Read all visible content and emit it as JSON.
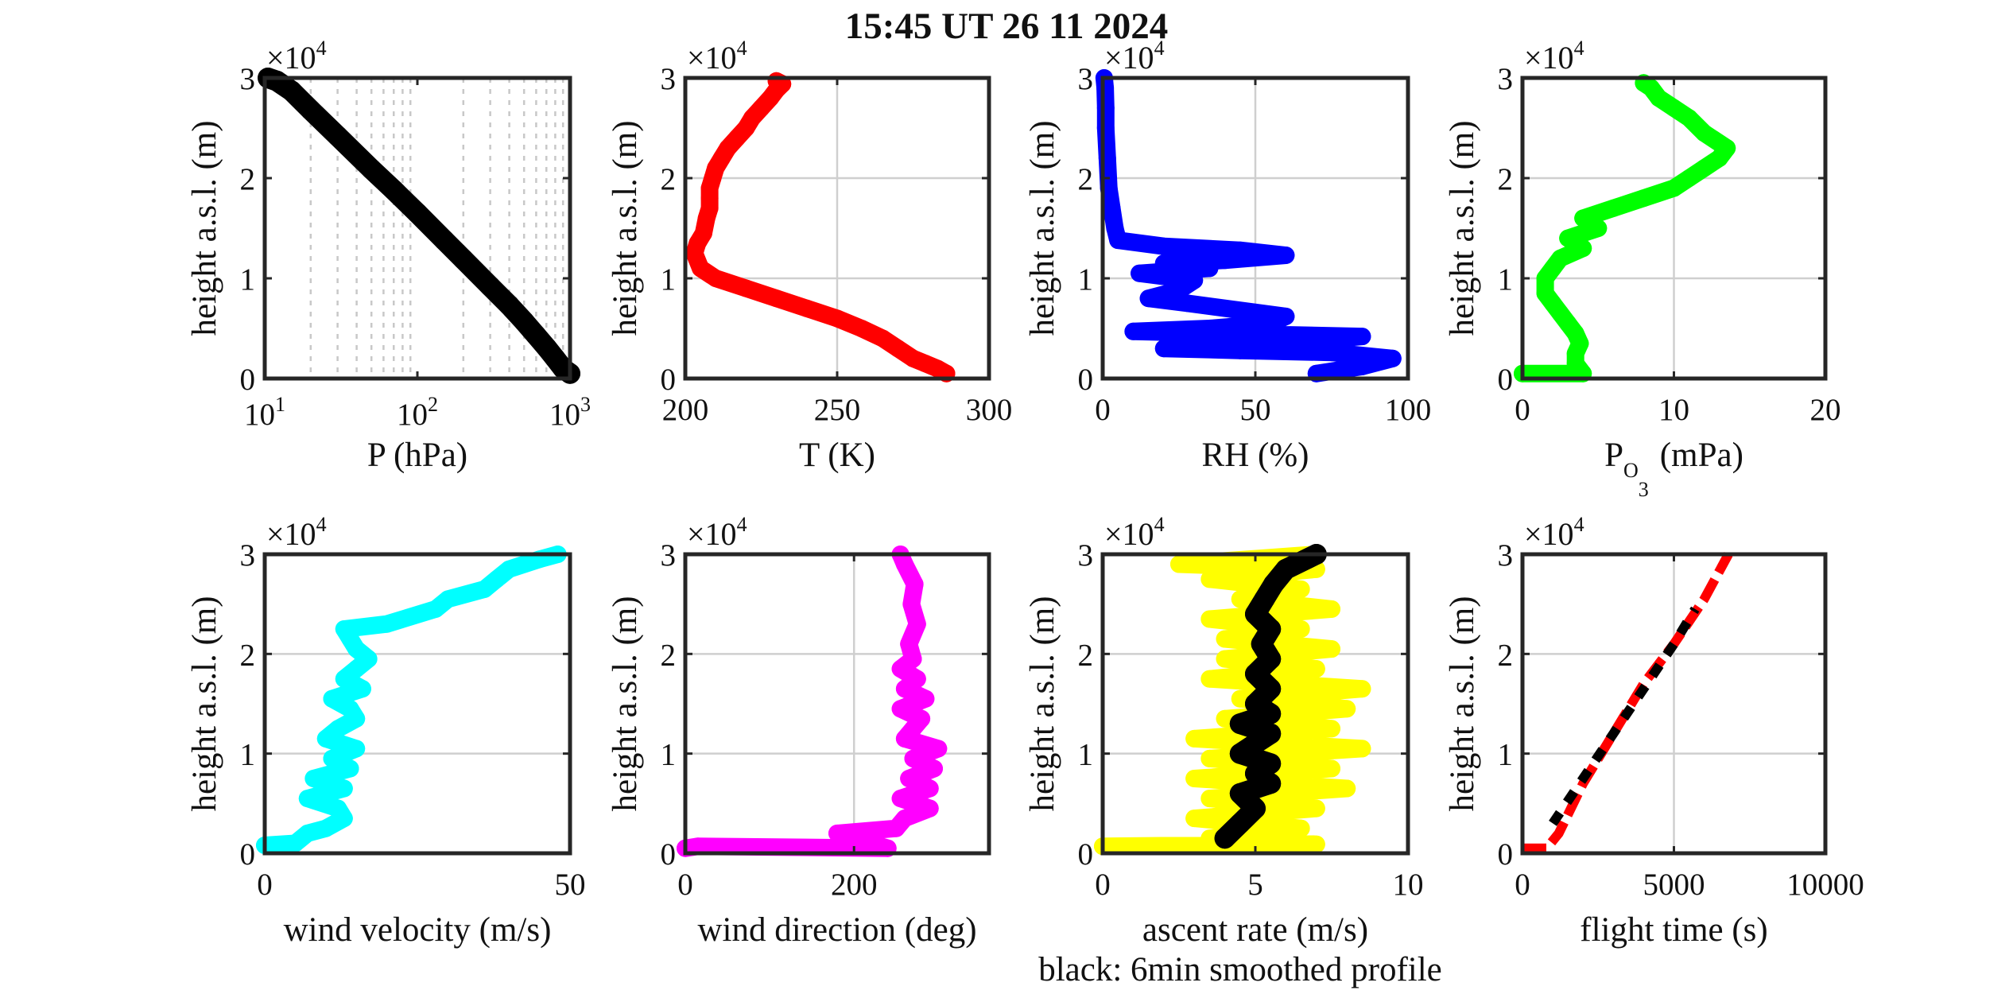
{
  "figure": {
    "title": "15:45 UT  26 11 2024",
    "note": "black: 6min smoothed profile",
    "y_label": "height a.s.l. (m)",
    "y_multiplier": "×10",
    "y_multiplier_exp": "4"
  },
  "chart_data": [
    {
      "type": "scatter",
      "xlabel": "P (hPa)",
      "x_scale": "log",
      "xlim": [
        10,
        1000
      ],
      "x_ticks": [
        10,
        100,
        1000
      ],
      "x_tick_labels": [
        {
          "base": "10",
          "exp": "1"
        },
        {
          "base": "10",
          "exp": "2"
        },
        {
          "base": "10",
          "exp": "3"
        }
      ],
      "ylim": [
        0,
        30000
      ],
      "y_ticks": [
        0,
        10000,
        20000,
        30000
      ],
      "y_tick_labels": [
        "0",
        "1",
        "2",
        "3"
      ],
      "grid": "minor dotted",
      "series": [
        {
          "color": "#000000",
          "marker_size": 13,
          "x": [
            1000,
            900,
            800,
            700,
            600,
            500,
            400,
            300,
            200,
            150,
            100,
            70,
            50,
            30,
            20,
            15,
            12,
            10.5
          ],
          "y": [
            500,
            1000,
            2000,
            3100,
            4300,
            5700,
            7300,
            9200,
            11900,
            13800,
            16500,
            18800,
            20900,
            24200,
            26800,
            28700,
            29700,
            30000
          ]
        }
      ]
    },
    {
      "type": "scatter",
      "xlabel": "T (K)",
      "xlim": [
        200,
        300
      ],
      "x_ticks": [
        200,
        250,
        300
      ],
      "x_tick_labels": [
        "200",
        "250",
        "300"
      ],
      "ylim": [
        0,
        30000
      ],
      "y_ticks": [
        0,
        10000,
        20000,
        30000
      ],
      "y_tick_labels": [
        "0",
        "1",
        "2",
        "3"
      ],
      "grid": "major",
      "series": [
        {
          "color": "#ff0000",
          "marker_size": 11,
          "x": [
            286,
            283,
            279,
            275,
            270,
            265,
            258,
            250,
            240,
            230,
            220,
            210,
            205,
            203,
            204,
            206,
            207,
            208,
            208,
            208,
            209,
            210,
            212,
            214,
            217,
            220,
            222,
            225,
            228,
            230,
            232,
            230
          ],
          "y": [
            500,
            1000,
            1500,
            2000,
            3000,
            4000,
            5000,
            6000,
            7000,
            8000,
            9000,
            10000,
            11000,
            12500,
            13500,
            14500,
            16000,
            17000,
            18000,
            19000,
            20000,
            21000,
            22000,
            23000,
            24000,
            25000,
            26000,
            27000,
            28000,
            28800,
            29400,
            29700
          ]
        }
      ]
    },
    {
      "type": "scatter",
      "xlabel": "RH (%)",
      "xlim": [
        0,
        100
      ],
      "x_ticks": [
        0,
        50,
        100
      ],
      "x_tick_labels": [
        "0",
        "50",
        "100"
      ],
      "ylim": [
        0,
        30000
      ],
      "y_ticks": [
        0,
        10000,
        20000,
        30000
      ],
      "y_tick_labels": [
        "0",
        "1",
        "2",
        "3"
      ],
      "grid": "major",
      "series": [
        {
          "color": "#0000ff",
          "marker_size": 11,
          "x": [
            70,
            85,
            95,
            75,
            45,
            20,
            60,
            85,
            10,
            35,
            55,
            60,
            28,
            15,
            25,
            30,
            12,
            35,
            20,
            40,
            60,
            45,
            20,
            5,
            4,
            3,
            2,
            1.5,
            1,
            1,
            0.8,
            0.5
          ],
          "y": [
            500,
            1200,
            2000,
            2600,
            2800,
            3000,
            3500,
            4200,
            4700,
            5000,
            5500,
            6200,
            7500,
            8000,
            8800,
            9800,
            10500,
            11000,
            11500,
            11800,
            12300,
            12800,
            13200,
            13800,
            15000,
            17000,
            19000,
            22000,
            25000,
            27000,
            29000,
            30000
          ]
        }
      ]
    },
    {
      "type": "scatter",
      "xlabel_base": "P",
      "xlabel_sub": "O",
      "xlabel_subsub": "3",
      "xlabel_unit": "(mPa)",
      "xlim": [
        0,
        20
      ],
      "x_ticks": [
        0,
        10,
        20
      ],
      "x_tick_labels": [
        "0",
        "10",
        "20"
      ],
      "ylim": [
        0,
        30000
      ],
      "y_ticks": [
        0,
        10000,
        20000,
        30000
      ],
      "y_tick_labels": [
        "0",
        "1",
        "2",
        "3"
      ],
      "grid": "major",
      "series": [
        {
          "color": "#00ff00",
          "marker_size": 11,
          "x": [
            0,
            4,
            3.5,
            3.5,
            3.8,
            3.5,
            3,
            2.5,
            2,
            1.5,
            1.5,
            2,
            2.5,
            4,
            3,
            5,
            4,
            6,
            8,
            10,
            11,
            12,
            13,
            13.5,
            12,
            11,
            10,
            9,
            8.5,
            8
          ],
          "y": [
            500,
            500,
            1500,
            2500,
            3500,
            4500,
            5500,
            6500,
            7500,
            8500,
            10000,
            11000,
            12000,
            13000,
            14000,
            15000,
            16000,
            17000,
            18000,
            19000,
            20000,
            21000,
            22000,
            23000,
            24500,
            26000,
            27000,
            28000,
            29000,
            29500
          ]
        }
      ]
    },
    {
      "type": "scatter",
      "xlabel": "wind velocity (m/s)",
      "xlim": [
        0,
        50
      ],
      "x_ticks": [
        0,
        50
      ],
      "x_tick_labels": [
        "0",
        "50"
      ],
      "ylim": [
        0,
        30000
      ],
      "y_ticks": [
        0,
        10000,
        20000,
        30000
      ],
      "y_tick_labels": [
        "0",
        "1",
        "2",
        "3"
      ],
      "grid": "major",
      "series": [
        {
          "color": "#00ffff",
          "marker_size": 11,
          "x": [
            0,
            5,
            7,
            10,
            13,
            12,
            7,
            13,
            8,
            14,
            11,
            15,
            10,
            12,
            15,
            14,
            11,
            16,
            13,
            15,
            17,
            15,
            14,
            13,
            20,
            28,
            30,
            36,
            38,
            40,
            45,
            48
          ],
          "y": [
            800,
            1000,
            2000,
            2500,
            3500,
            4500,
            5500,
            6500,
            7500,
            8500,
            9500,
            10500,
            11500,
            12500,
            13500,
            14500,
            15500,
            16500,
            17500,
            18500,
            19500,
            20500,
            21500,
            22500,
            23000,
            24500,
            25500,
            26500,
            27500,
            28500,
            29500,
            30000
          ]
        }
      ]
    },
    {
      "type": "scatter",
      "xlabel": "wind direction (deg)",
      "xlim": [
        0,
        360
      ],
      "x_ticks": [
        0,
        200
      ],
      "x_tick_labels": [
        "0",
        "200"
      ],
      "ylim": [
        0,
        30000
      ],
      "y_ticks": [
        0,
        10000,
        20000,
        30000
      ],
      "y_tick_labels": [
        "0",
        "1",
        "2",
        "3"
      ],
      "grid": "major",
      "series": [
        {
          "color": "#ff00ff",
          "marker_size": 11,
          "x": [
            0,
            15,
            240,
            180,
            250,
            260,
            290,
            255,
            290,
            265,
            295,
            270,
            300,
            260,
            270,
            280,
            255,
            285,
            260,
            275,
            255,
            270,
            265,
            275,
            268,
            272,
            260,
            255
          ],
          "y": [
            500,
            700,
            500,
            2000,
            2500,
            3500,
            4500,
            5500,
            6500,
            7500,
            8500,
            9500,
            10500,
            11500,
            12500,
            13500,
            14500,
            15500,
            16500,
            17500,
            18500,
            19500,
            21000,
            23000,
            25000,
            27000,
            29000,
            30000
          ]
        }
      ]
    },
    {
      "type": "scatter",
      "xlabel": "ascent rate (m/s)",
      "xlim": [
        0,
        10
      ],
      "x_ticks": [
        0,
        5,
        10
      ],
      "x_tick_labels": [
        "0",
        "5",
        "10"
      ],
      "ylim": [
        0,
        30000
      ],
      "y_ticks": [
        0,
        10000,
        20000,
        30000
      ],
      "y_tick_labels": [
        "0",
        "1",
        "2",
        "3"
      ],
      "grid": "major",
      "series": [
        {
          "color": "#ffff00",
          "marker_size": 11,
          "x": [
            0,
            7,
            3.5,
            6.5,
            3,
            7,
            3.5,
            8,
            3,
            7.5,
            3.5,
            8.5,
            3,
            7.5,
            4,
            8,
            4.5,
            8.5,
            3.5,
            7,
            4,
            7.5,
            4,
            6.5,
            3.5,
            7.5,
            4.5,
            6.5,
            3.5,
            7,
            2.5,
            7
          ],
          "y": [
            700,
            900,
            1500,
            2500,
            3500,
            4500,
            5500,
            6500,
            7500,
            8500,
            9500,
            10500,
            11500,
            12500,
            13500,
            14500,
            15500,
            16500,
            17500,
            18500,
            19500,
            20500,
            21500,
            22500,
            23500,
            24500,
            25500,
            26500,
            27500,
            28500,
            29000,
            30000
          ]
        },
        {
          "color": "#000000",
          "marker_size": 13,
          "x": [
            4,
            4.5,
            5,
            4.5,
            5.5,
            5,
            5.5,
            4.5,
            5,
            5.5,
            4.5,
            5.5,
            5,
            5.5,
            5,
            5.5,
            5.2,
            5.5,
            5,
            5.3,
            5.6,
            6,
            7
          ],
          "y": [
            1500,
            3000,
            4500,
            6000,
            7000,
            8000,
            9000,
            10000,
            11000,
            12000,
            13000,
            14000,
            15000,
            16500,
            18000,
            19500,
            21000,
            22500,
            24000,
            25500,
            27000,
            28500,
            30000
          ]
        }
      ]
    },
    {
      "type": "line",
      "xlabel": "flight time (s)",
      "xlim": [
        0,
        10000
      ],
      "x_ticks": [
        0,
        5000,
        10000
      ],
      "x_tick_labels": [
        "0",
        "5000",
        "10000"
      ],
      "ylim": [
        0,
        30000
      ],
      "y_ticks": [
        0,
        10000,
        20000,
        30000
      ],
      "y_tick_labels": [
        "0",
        "1",
        "2",
        "3"
      ],
      "grid": "major",
      "series": [
        {
          "color": "#ff0000",
          "style": "dashed",
          "x": [
            0,
            800,
            1200,
            2000,
            3000,
            4000,
            5000,
            6000,
            6800
          ],
          "y": [
            500,
            500,
            2000,
            7000,
            12000,
            17000,
            21000,
            25500,
            30000
          ]
        },
        {
          "color": "#000000",
          "style": "dashed",
          "x": [
            1000,
            2000,
            3000,
            4000,
            5000,
            5700
          ],
          "y": [
            3000,
            7500,
            12000,
            16500,
            21000,
            24500
          ]
        }
      ]
    }
  ]
}
